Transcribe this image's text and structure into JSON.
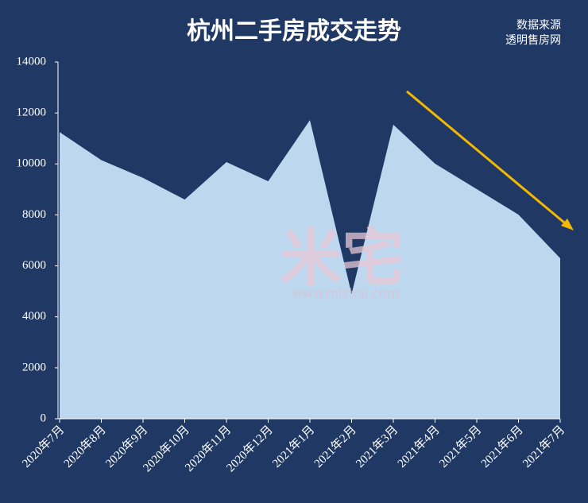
{
  "chart_data": {
    "type": "area",
    "title": "杭州二手房成交走势",
    "source_line1": "数据来源",
    "source_line2": "透明售房网",
    "watermark": "米宅",
    "watermark_url": "www.mizhai.com",
    "categories": [
      "2020年7月",
      "2020年8月",
      "2020年9月",
      "2020年10月",
      "2020年11月",
      "2020年12月",
      "2021年1月",
      "2021年2月",
      "2021年3月",
      "2021年4月",
      "2021年5月",
      "2021年6月",
      "2021年7月"
    ],
    "values": [
      11250,
      10150,
      9450,
      8600,
      10070,
      9320,
      11720,
      4900,
      11540,
      10010,
      9010,
      8010,
      6300
    ],
    "color": "#bdd7ee",
    "ylim": [
      0,
      14000
    ],
    "yticks": [
      0,
      2000,
      4000,
      6000,
      8000,
      10000,
      12000,
      14000
    ],
    "grid": false
  }
}
